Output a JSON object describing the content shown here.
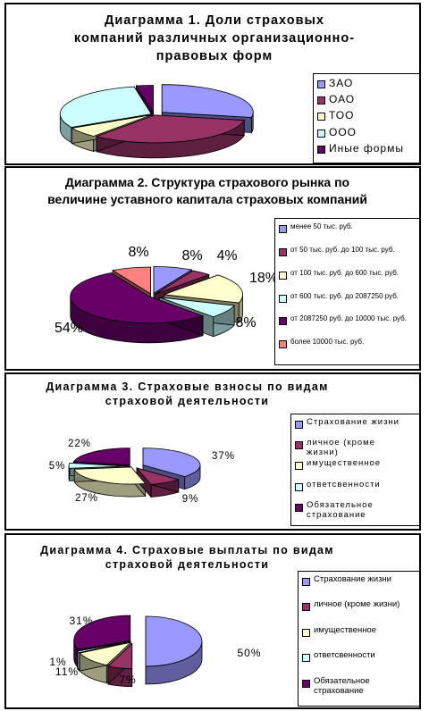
{
  "chart_data": [
    {
      "type": "pie",
      "title": "Диаграмма 1. Доли страховых компаний различных организационно-правовых форм",
      "title_lines": [
        "Диаграмма 1. Доли страховых",
        "компаний различных организационно-",
        "правовых форм"
      ],
      "categories": [
        "ЗАО",
        "ОАО",
        "ТОО",
        "ООО",
        "Иные формы"
      ],
      "values": [
        28,
        33,
        6,
        30,
        3
      ],
      "colors": [
        "#9999ff",
        "#993366",
        "#ffffcc",
        "#ccffff",
        "#660066"
      ],
      "legend_position": "right",
      "value_labels": []
    },
    {
      "type": "pie",
      "title": "Диаграмма 2. Структура страхового рынка по величине уставного капитала страховых компаний",
      "title_lines": [
        "Диаграмма 2. Структура страхового рынка по",
        "величине уставного капитала страховых компаний"
      ],
      "categories": [
        "менее 50 тыс. руб.",
        "от 50 тыс. руб. до 100 тыс. руб.",
        "от 100 тыс. руб. до 600 тыс. руб.",
        "от 600 тыс. руб. до 2087250 руб.",
        "от 2087250 руб. до 10000 тыс. руб.",
        "более 10000 тыс. руб."
      ],
      "values": [
        8,
        4,
        18,
        8,
        54,
        8
      ],
      "colors": [
        "#9999ff",
        "#993366",
        "#ffffcc",
        "#ccffff",
        "#660066",
        "#ff8080"
      ],
      "legend_position": "right",
      "value_labels": [
        "8%",
        "4%",
        "18%",
        "8%",
        "54%",
        "8%"
      ]
    },
    {
      "type": "pie",
      "title": "Диаграмма 3. Страховые взносы по видам страховой деятельности",
      "title_lines": [
        "Диаграмма 3. Страховые взносы по видам",
        "страховой деятельности"
      ],
      "categories": [
        "Страхование жизни",
        "личное (кроме жизни)",
        "имущественное",
        "ответсвенности",
        "Обязательное страхование"
      ],
      "legend_labels": [
        [
          "Страхование жизни"
        ],
        [
          "личное (кроме",
          "жизни)"
        ],
        [
          "имущественное"
        ],
        [
          "ответсвенности"
        ],
        [
          "Обязательное",
          "страхование"
        ]
      ],
      "values": [
        37,
        9,
        27,
        5,
        22
      ],
      "colors": [
        "#9999ff",
        "#993366",
        "#ffffcc",
        "#ccffff",
        "#660066"
      ],
      "legend_position": "right",
      "value_labels": [
        "37%",
        "9%",
        "27%",
        "5%",
        "22%"
      ]
    },
    {
      "type": "pie",
      "title": "Диаграмма 4. Страховые выплаты по видам страховой деятельности",
      "title_lines": [
        "Диаграмма 4. Страховые выплаты по видам",
        "страховой деятельности"
      ],
      "categories": [
        "Страхование жизни",
        "личное (кроме жизни)",
        "имущественное",
        "ответсвенности",
        "Обязательное страхование"
      ],
      "legend_labels": [
        [
          "Страхование жизни"
        ],
        [
          "личное (кроме жизни)"
        ],
        [
          "имущественное"
        ],
        [
          "ответсвенности"
        ],
        [
          "Обязательное",
          "страхование"
        ]
      ],
      "values": [
        50,
        7,
        11,
        1,
        31
      ],
      "colors": [
        "#9999ff",
        "#993366",
        "#ffffcc",
        "#ccffff",
        "#660066"
      ],
      "legend_position": "right",
      "value_labels": [
        "50%",
        "7%",
        "11%",
        "1%",
        "31%"
      ]
    }
  ]
}
